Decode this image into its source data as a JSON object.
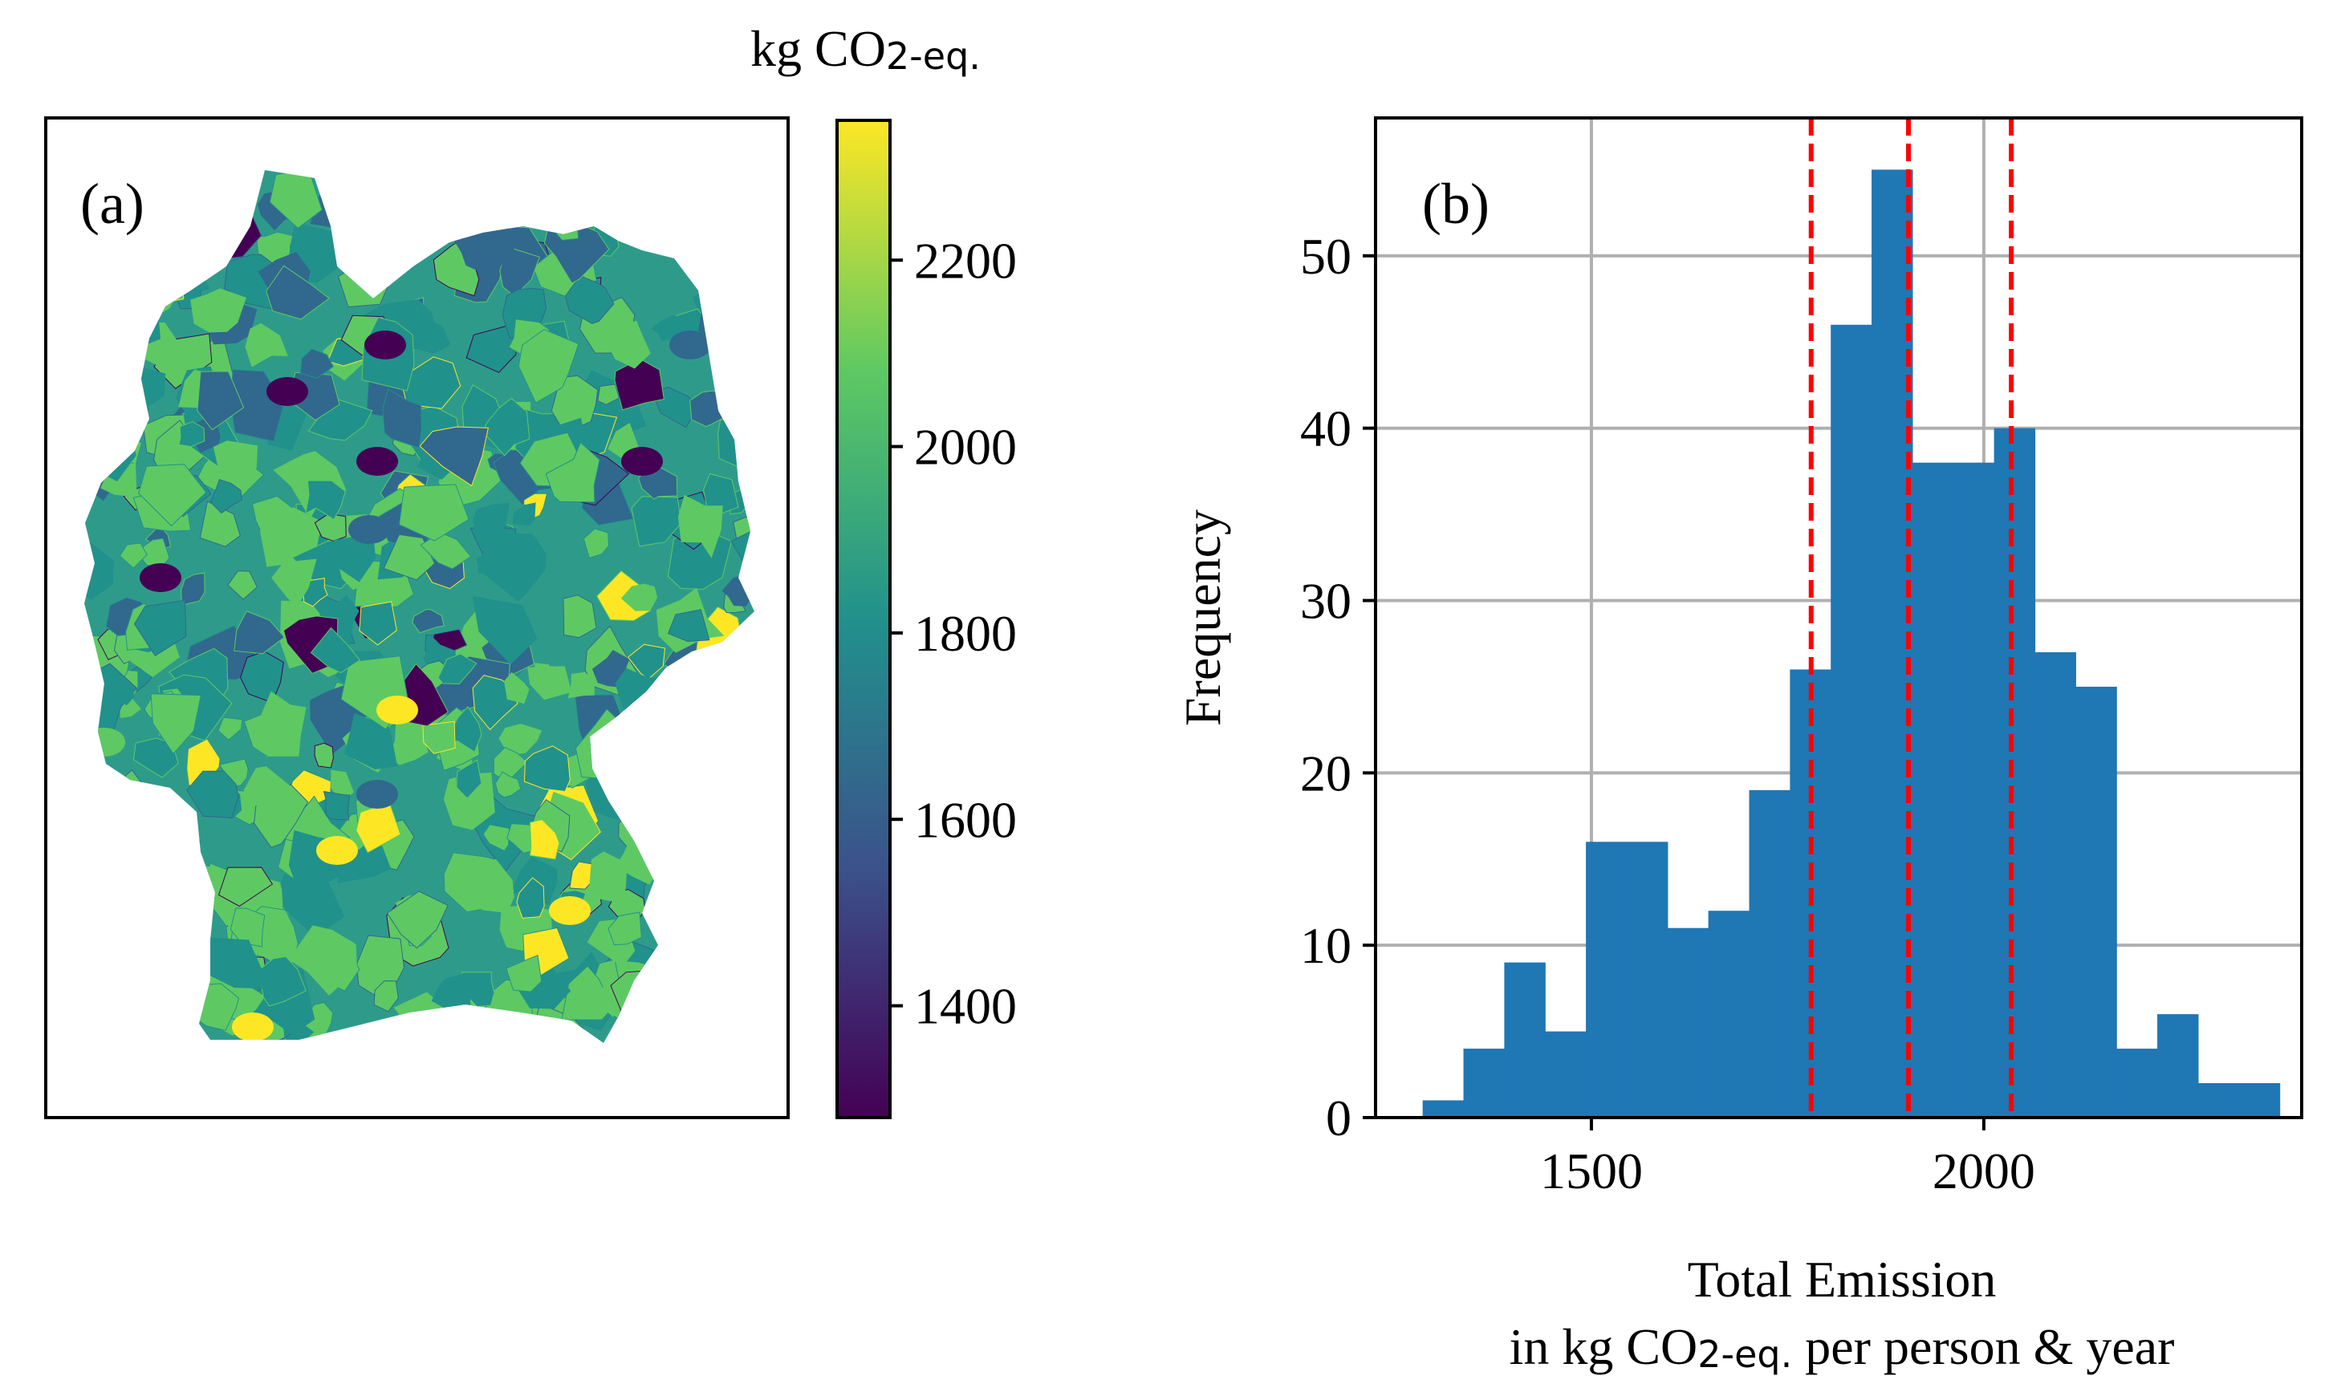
{
  "figure": {
    "panel_a_label": "(a)",
    "panel_b_label": "(b)"
  },
  "colorbar": {
    "title_prefix": "kg CO",
    "title_subscript": "2-eq.",
    "ticks": [
      1400,
      1600,
      1800,
      2000,
      2200
    ],
    "range": [
      1280,
      2350
    ],
    "colormap": "viridis",
    "colors": [
      "#440154",
      "#3b528b",
      "#21918c",
      "#5ec962",
      "#fde725"
    ]
  },
  "map": {
    "region": "Germany districts",
    "colors": {
      "low": "#440154",
      "mid_low": "#31688e",
      "mid": "#21918c",
      "mid_high": "#5ec962",
      "high": "#fde725"
    }
  },
  "chart_data": {
    "type": "bar",
    "subtype": "histogram",
    "bin_edges": [
      1285,
      1337,
      1389,
      1441,
      1493,
      1545,
      1597,
      1649,
      1701,
      1753,
      1805,
      1857,
      1909,
      1961,
      2013,
      2065,
      2117,
      2169,
      2221,
      2273,
      2325,
      2377
    ],
    "values": [
      1,
      4,
      9,
      5,
      16,
      16,
      11,
      12,
      19,
      26,
      46,
      55,
      38,
      38,
      40,
      27,
      25,
      4,
      6,
      2,
      2
    ],
    "bar_color": "#1f77b4",
    "vlines": [
      1780,
      1904,
      2035
    ],
    "vline_color": "#ff0000",
    "xlim": [
      1225,
      2405
    ],
    "ylim": [
      0,
      58
    ],
    "xticks": [
      1500,
      2000
    ],
    "yticks": [
      0,
      10,
      20,
      30,
      40,
      50
    ],
    "grid": true,
    "title": "",
    "ylabel": "Frequency",
    "xlabel_line1": "Total Emission",
    "xlabel_line2_prefix": "in kg CO",
    "xlabel_line2_subscript": "2-eq.",
    "xlabel_line2_suffix": " per person & year"
  }
}
